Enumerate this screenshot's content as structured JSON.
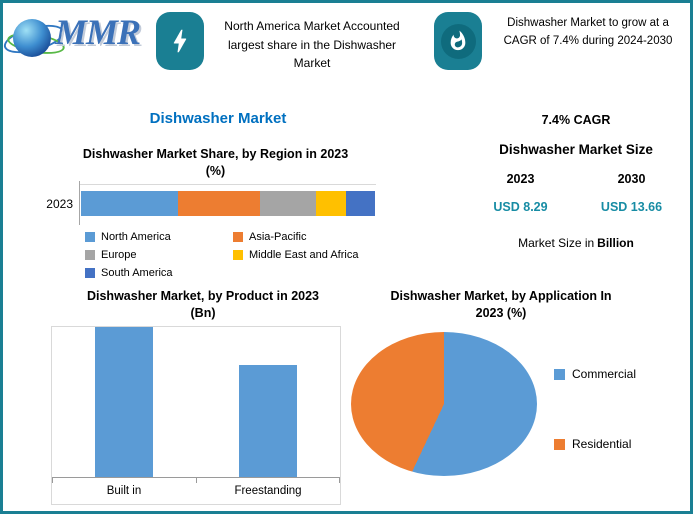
{
  "colors": {
    "border_teal": "#1A7F93",
    "badge_teal": "#1A7F93",
    "title_blue": "#0070C0",
    "value_teal": "#178CA4"
  },
  "header": {
    "logo_text": "MMR",
    "callout_left": "North America Market Accounted largest share in the Dishwasher Market",
    "callout_right": "Dishwasher Market to grow at a CAGR of 7.4% during 2024-2030"
  },
  "main_title": "Dishwasher Market",
  "market_size_panel": {
    "cagr": "7.4% CAGR",
    "heading": "Dishwasher Market Size",
    "year_start": "2023",
    "year_end": "2030",
    "value_start": "USD 8.29",
    "value_end": "USD 13.66",
    "note_plain": "Market Size in",
    "note_bold": "Billion"
  },
  "chart_data": [
    {
      "id": "region_share",
      "type": "bar",
      "variant": "horizontal-stacked",
      "title": "Dishwasher Market Share, by Region in 2023",
      "title_line2": "(%)",
      "categories": [
        "2023"
      ],
      "xlim": [
        0,
        100
      ],
      "legend_position": "bottom",
      "series": [
        {
          "name": "North America",
          "value": 33,
          "color": "#5B9BD5"
        },
        {
          "name": "Asia-Pacific",
          "value": 28,
          "color": "#ED7D31"
        },
        {
          "name": "Europe",
          "value": 19,
          "color": "#A5A5A5"
        },
        {
          "name": "Middle East and Africa",
          "value": 10,
          "color": "#FFC000"
        },
        {
          "name": "South America",
          "value": 10,
          "color": "#4472C4"
        }
      ]
    },
    {
      "id": "product",
      "type": "bar",
      "title": "Dishwasher Market, by Product in 2023",
      "title_line2": "(Bn)",
      "categories": [
        "Built in",
        "Freestanding"
      ],
      "values": [
        4.7,
        3.5
      ],
      "color": "#5B9BD5"
    },
    {
      "id": "application",
      "type": "pie",
      "title": "Dishwasher Market, by Application In",
      "title_line2": "2023 (%)",
      "categories": [
        "Commercial",
        "Residential"
      ],
      "values": [
        57,
        43
      ],
      "colors": [
        "#5B9BD5",
        "#ED7D31"
      ],
      "legend_position": "right"
    }
  ]
}
